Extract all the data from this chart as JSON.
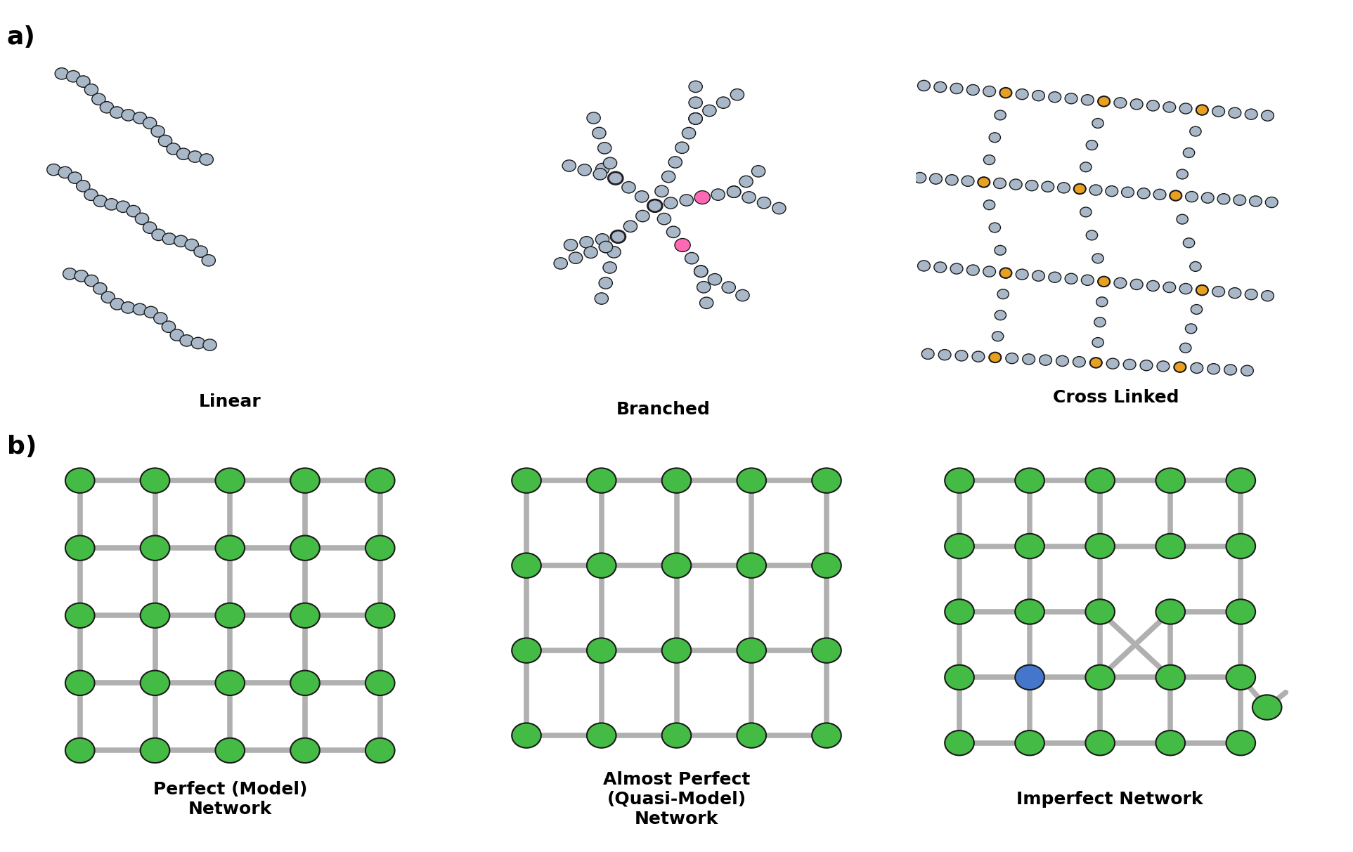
{
  "background_color": "#ffffff",
  "gray": "#a8b8c8",
  "pink": "#ff69b4",
  "orange": "#e8a020",
  "green": "#44bb44",
  "blue_node": "#4477cc",
  "outline": "#1a1a1a",
  "grid_color": "#b0b0b0",
  "label_a": "a)",
  "label_b": "b)",
  "label_linear": "Linear",
  "label_branched": "Branched",
  "label_crosslinked": "Cross Linked",
  "label_perfect": "Perfect (Model)\nNetwork",
  "label_almost": "Almost Perfect\n(Quasi-Model)\nNetwork",
  "label_imperfect": "Imperfect Network",
  "lbl_fontsize": 18,
  "sec_fontsize": 26,
  "bead_r": 0.013,
  "bead_lw": 1.0
}
